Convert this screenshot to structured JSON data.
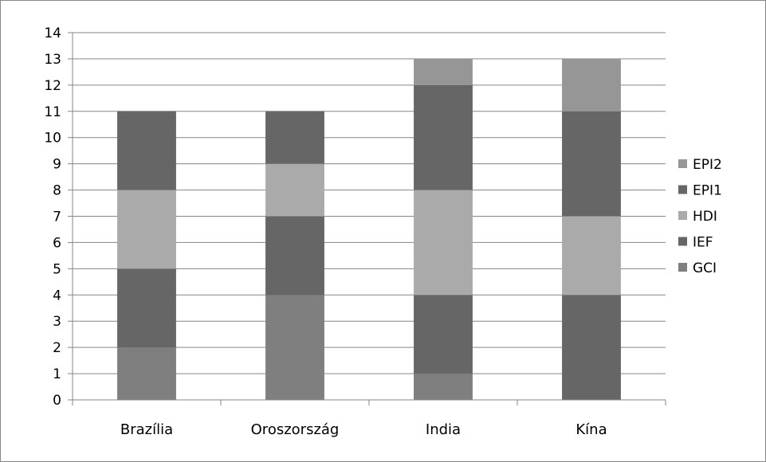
{
  "chart_data": {
    "type": "bar",
    "stacked": true,
    "title": "",
    "xlabel": "",
    "ylabel": "",
    "categories": [
      "Brazília",
      "Oroszország",
      "India",
      "Kína"
    ],
    "ylim": [
      0,
      14
    ],
    "yticks": [
      0,
      1,
      2,
      3,
      4,
      5,
      6,
      7,
      8,
      9,
      10,
      11,
      12,
      13,
      14
    ],
    "grid": true,
    "legend_position": "right",
    "series": [
      {
        "name": "GCI",
        "color": "#7f7f7f",
        "values": [
          2,
          4,
          1,
          0
        ]
      },
      {
        "name": "IEF",
        "color": "#666666",
        "values": [
          3,
          3,
          3,
          4
        ]
      },
      {
        "name": "HDI",
        "color": "#aaaaaa",
        "values": [
          3,
          2,
          4,
          3
        ]
      },
      {
        "name": "EPI1",
        "color": "#666666",
        "values": [
          3,
          2,
          4,
          4
        ]
      },
      {
        "name": "EPI2",
        "color": "#969696",
        "values": [
          0,
          0,
          1,
          2
        ]
      }
    ]
  }
}
